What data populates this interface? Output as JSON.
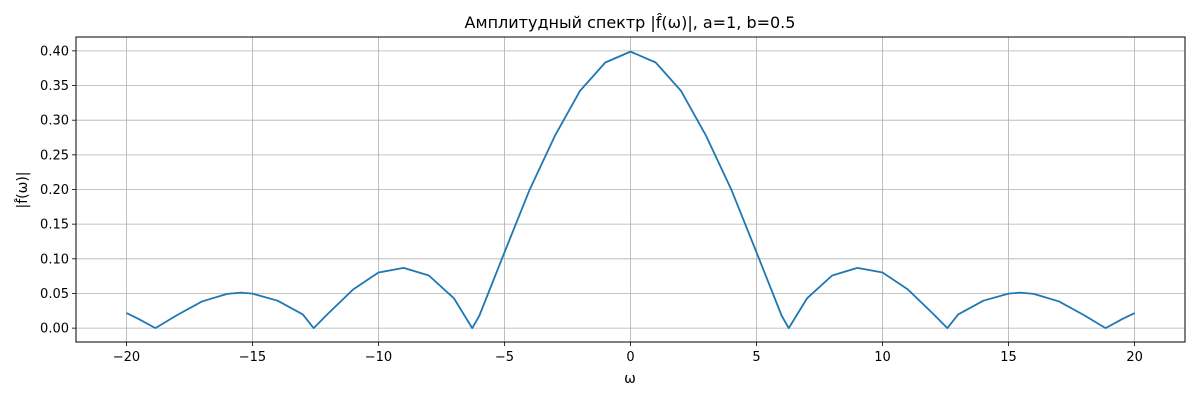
{
  "chart_data": {
    "type": "line",
    "title": "Амплитудный спектр |f̂(ω)|, a=1, b=0.5",
    "xlabel": "ω",
    "ylabel": "|f̂(ω)|",
    "xlim": [
      -22,
      22
    ],
    "ylim": [
      -0.02,
      0.42
    ],
    "xticks": [
      -20,
      -15,
      -10,
      -5,
      0,
      5,
      10,
      15,
      20
    ],
    "xtick_labels": [
      "−20",
      "−15",
      "−10",
      "−5",
      "0",
      "5",
      "10",
      "15",
      "20"
    ],
    "yticks": [
      0.0,
      0.05,
      0.1,
      0.15,
      0.2,
      0.25,
      0.3,
      0.35,
      0.4
    ],
    "ytick_labels": [
      "0.00",
      "0.05",
      "0.10",
      "0.15",
      "0.20",
      "0.25",
      "0.30",
      "0.35",
      "0.40"
    ],
    "grid": true,
    "series": [
      {
        "color": "#1f77b4",
        "x": [
          -20,
          -19.5,
          -18.85,
          -18,
          -17,
          -16,
          -15.45,
          -15,
          -14,
          -13,
          -12.57,
          -12,
          -11,
          -10,
          -9,
          -8,
          -7,
          -6.28,
          -6,
          -5,
          -4,
          -3,
          -2,
          -1,
          0,
          1,
          2,
          3,
          4,
          5,
          6,
          6.28,
          7,
          8,
          9,
          10,
          11,
          12,
          12.57,
          13,
          14,
          15,
          15.45,
          16,
          17,
          18,
          18.85,
          19.5,
          20
        ],
        "y": [
          0.0218,
          0.0129,
          0.0,
          0.0186,
          0.0385,
          0.0494,
          0.0512,
          0.0498,
          0.0396,
          0.0198,
          0.0,
          0.0209,
          0.0559,
          0.0802,
          0.0869,
          0.0759,
          0.0428,
          0.0,
          0.0177,
          0.1093,
          0.1999,
          0.2774,
          0.3425,
          0.3832,
          0.3989,
          0.3832,
          0.3425,
          0.2774,
          0.1999,
          0.1093,
          0.0177,
          0.0,
          0.0428,
          0.0759,
          0.0869,
          0.0802,
          0.0559,
          0.0209,
          0.0,
          0.0198,
          0.0396,
          0.0498,
          0.0512,
          0.0494,
          0.0385,
          0.0186,
          0.0,
          0.0129,
          0.0218
        ]
      }
    ]
  }
}
